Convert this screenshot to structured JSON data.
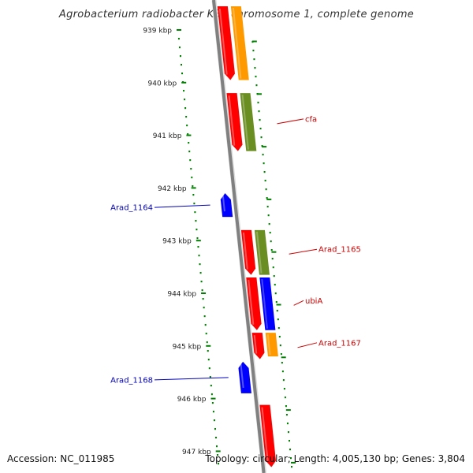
{
  "title": "Agrobacterium radiobacter K84 chromosome 1, complete genome",
  "footer": {
    "accession": "Accession: NC_011985",
    "topology": "Topology: circular; Length: 4,005,130 bp; Genes: 3,804"
  },
  "colors": {
    "forward": "#ff0000",
    "reverse": "#0000ff",
    "orange": "#ff9900",
    "olive": "#6b8e23",
    "backbone": "#808080",
    "tick": "#008000",
    "label_forward": "#cc0000",
    "label_reverse": "#0000bb"
  },
  "ticks": [
    {
      "label": "939 kbp",
      "pos": 939
    },
    {
      "label": "940 kbp",
      "pos": 940
    },
    {
      "label": "941 kbp",
      "pos": 941
    },
    {
      "label": "942 kbp",
      "pos": 942
    },
    {
      "label": "943 kbp",
      "pos": 943
    },
    {
      "label": "944 kbp",
      "pos": 944
    },
    {
      "label": "945 kbp",
      "pos": 945
    },
    {
      "label": "946 kbp",
      "pos": 946
    },
    {
      "label": "947 kbp",
      "pos": 947
    }
  ],
  "genes": [
    {
      "name": "",
      "strand": "forward",
      "start": 938.55,
      "end": 939.95
    },
    {
      "name": "cfa",
      "strand": "forward",
      "start": 940.2,
      "end": 941.3
    },
    {
      "name": "Arad_1164",
      "strand": "reverse",
      "start": 942.1,
      "end": 942.55
    },
    {
      "name": "Arad_1165",
      "strand": "forward",
      "start": 942.8,
      "end": 943.65
    },
    {
      "name": "ubiA",
      "strand": "forward",
      "start": 943.7,
      "end": 944.7
    },
    {
      "name": "Arad_1167",
      "strand": "forward",
      "start": 944.75,
      "end": 945.25
    },
    {
      "name": "Arad_1168",
      "strand": "reverse",
      "start": 945.3,
      "end": 945.9
    },
    {
      "name": "",
      "strand": "forward",
      "start": 946.12,
      "end": 947.3
    }
  ],
  "features": [
    {
      "color": "orange",
      "start": 938.55,
      "end": 939.95
    },
    {
      "color": "olive",
      "start": 940.2,
      "end": 941.3
    },
    {
      "color": "olive",
      "start": 942.8,
      "end": 943.65
    },
    {
      "color": "reverse",
      "start": 943.7,
      "end": 944.7
    },
    {
      "color": "orange",
      "start": 944.75,
      "end": 945.2
    }
  ]
}
